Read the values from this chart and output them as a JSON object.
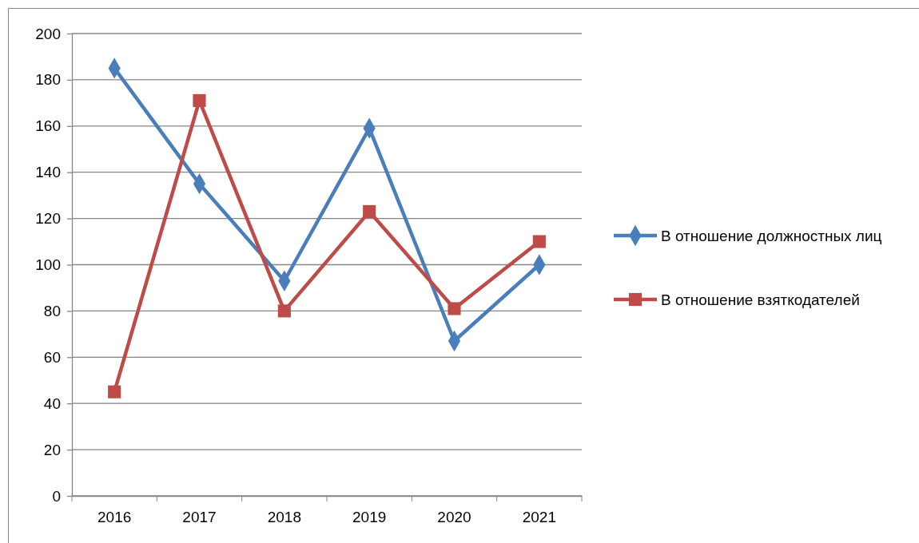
{
  "chart_data": {
    "type": "line",
    "categories": [
      "2016",
      "2017",
      "2018",
      "2019",
      "2020",
      "2021"
    ],
    "series": [
      {
        "name": "В отношение должностных лиц",
        "color": "#4a7ebb",
        "marker": "diamond",
        "values": [
          185,
          135,
          93,
          159,
          67,
          100
        ]
      },
      {
        "name": "В отношение взяткодателей",
        "color": "#be4b48",
        "marker": "square",
        "values": [
          45,
          171,
          80,
          123,
          81,
          110
        ]
      }
    ],
    "ylim": [
      0,
      200
    ],
    "yticks": [
      0,
      20,
      40,
      60,
      80,
      100,
      120,
      140,
      160,
      180,
      200
    ],
    "grid": "y",
    "legend": "right",
    "line_style": "solid"
  }
}
